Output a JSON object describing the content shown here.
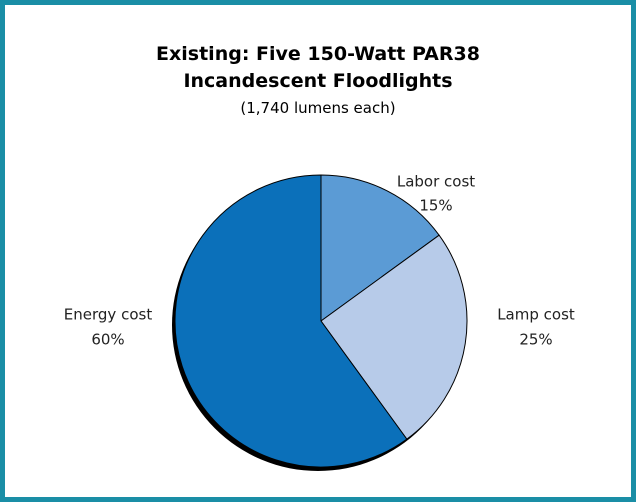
{
  "chart_data": {
    "type": "pie",
    "title": "Existing:  Five 150-Watt PAR38 Incandescent Floodlights",
    "subtitle": "(1,740 lumens each)",
    "categories": [
      "Labor cost",
      "Lamp cost",
      "Energy cost"
    ],
    "values": [
      15,
      25,
      60
    ],
    "value_labels": [
      "15%",
      "25%",
      "60%"
    ],
    "colors": [
      "#5b9bd5",
      "#b7cbe9",
      "#0b70ba"
    ]
  }
}
